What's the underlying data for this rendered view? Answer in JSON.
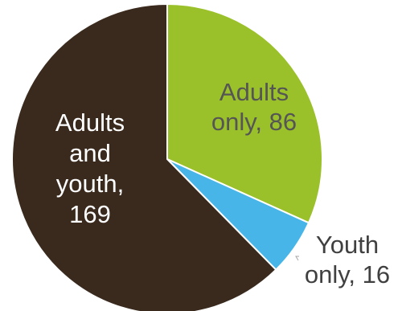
{
  "chart_data": {
    "type": "pie",
    "start_angle_deg": 0,
    "direction": "clockwise",
    "slices": [
      {
        "label": "Adults only, 86",
        "label_lines": [
          "Adults",
          "only, 86"
        ],
        "value": 86,
        "color": "#9bc12a",
        "label_color": "#555555"
      },
      {
        "label": "Youth only, 16",
        "label_lines": [
          "Youth",
          "only, 16"
        ],
        "value": 16,
        "color": "#47b5e8",
        "label_color": "#404040"
      },
      {
        "label": "Adults and youth, 169",
        "label_lines": [
          "Adults",
          "and",
          "youth,",
          "169"
        ],
        "value": 169,
        "color": "#3a2a1d",
        "label_color": "#ffffff"
      }
    ]
  }
}
